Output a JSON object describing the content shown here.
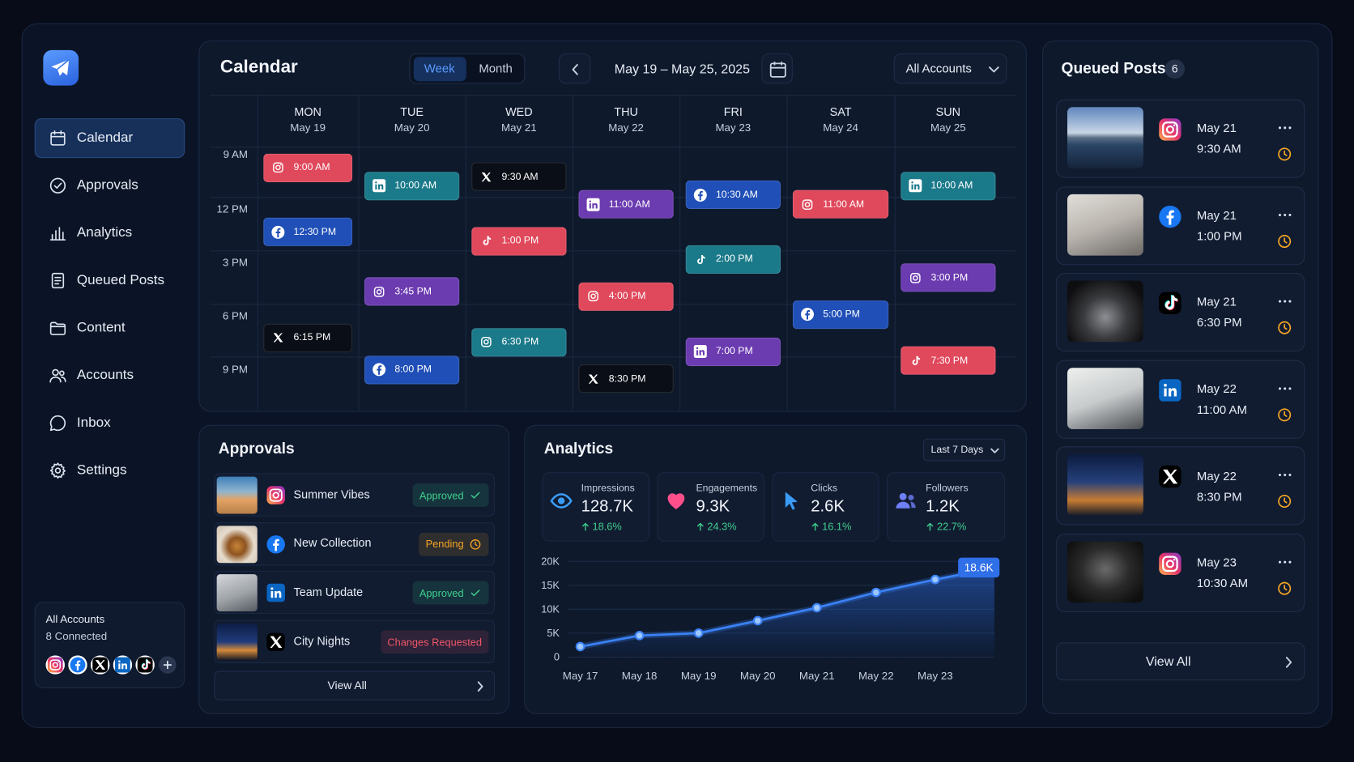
{
  "sidebar": {
    "nav": [
      "Calendar",
      "Approvals",
      "Analytics",
      "Queued Posts",
      "Content",
      "Accounts",
      "Inbox",
      "Settings"
    ],
    "accounts_summary": {
      "title": "All Accounts",
      "subtitle": "8 Connected",
      "platforms": [
        "instagram",
        "facebook",
        "x",
        "linkedin",
        "tiktok"
      ]
    }
  },
  "calendar": {
    "title": "Calendar",
    "views": [
      "Week",
      "Month"
    ],
    "range": "May 19 – May 25, 2025",
    "account_filter": "All Accounts",
    "times": [
      "9 AM",
      "12 PM",
      "3 PM",
      "6 PM",
      "9 PM"
    ],
    "days": [
      {
        "name": "MON",
        "date": "May 19",
        "events": [
          {
            "time": "9:00 AM",
            "platform": "instagram",
            "color": "#e0485b"
          },
          {
            "time": "12:30 PM",
            "platform": "facebook",
            "color": "#1f4fb7"
          },
          {
            "time": "6:15 PM",
            "platform": "x",
            "color": "#0a0e16"
          }
        ]
      },
      {
        "name": "TUE",
        "date": "May 20",
        "events": [
          {
            "time": "10:00 AM",
            "platform": "linkedin",
            "color": "#1b7a8a"
          },
          {
            "time": "3:45 PM",
            "platform": "instagram",
            "color": "#6b3bb0"
          },
          {
            "time": "8:00 PM",
            "platform": "facebook",
            "color": "#1f4fb7"
          }
        ]
      },
      {
        "name": "WED",
        "date": "May 21",
        "events": [
          {
            "time": "9:30 AM",
            "platform": "x",
            "color": "#0a0e16"
          },
          {
            "time": "1:00 PM",
            "platform": "tiktok",
            "color": "#e0485b"
          },
          {
            "time": "6:30 PM",
            "platform": "instagram",
            "color": "#1b7a8a"
          }
        ]
      },
      {
        "name": "THU",
        "date": "May 22",
        "events": [
          {
            "time": "11:00 AM",
            "platform": "linkedin",
            "color": "#6b3bb0"
          },
          {
            "time": "4:00 PM",
            "platform": "instagram",
            "color": "#e0485b"
          },
          {
            "time": "8:30 PM",
            "platform": "x",
            "color": "#0a0e16"
          }
        ]
      },
      {
        "name": "FRI",
        "date": "May 23",
        "events": [
          {
            "time": "10:30 AM",
            "platform": "facebook",
            "color": "#1f4fb7"
          },
          {
            "time": "2:00 PM",
            "platform": "tiktok",
            "color": "#1b7a8a"
          },
          {
            "time": "7:00 PM",
            "platform": "linkedin",
            "color": "#6b3bb0"
          }
        ]
      },
      {
        "name": "SAT",
        "date": "May 24",
        "events": [
          {
            "time": "11:00 AM",
            "platform": "instagram",
            "color": "#e0485b"
          },
          {
            "time": "5:00 PM",
            "platform": "facebook",
            "color": "#1f4fb7"
          }
        ]
      },
      {
        "name": "SUN",
        "date": "May 25",
        "events": [
          {
            "time": "10:00 AM",
            "platform": "linkedin",
            "color": "#1b7a8a"
          },
          {
            "time": "3:00 PM",
            "platform": "instagram",
            "color": "#6b3bb0"
          },
          {
            "time": "7:30 PM",
            "platform": "tiktok",
            "color": "#e0485b"
          }
        ]
      }
    ]
  },
  "queued_posts": {
    "title": "Queued Posts",
    "count": 6,
    "posts": [
      {
        "platform": "instagram",
        "date": "May 21",
        "time": "9:30 AM"
      },
      {
        "platform": "facebook",
        "date": "May 21",
        "time": "1:00 PM"
      },
      {
        "platform": "tiktok",
        "date": "May 21",
        "time": "6:30 PM"
      },
      {
        "platform": "linkedin",
        "date": "May 22",
        "time": "11:00 AM"
      },
      {
        "platform": "x",
        "date": "May 22",
        "time": "8:30 PM"
      },
      {
        "platform": "instagram",
        "date": "May 23",
        "time": "10:30 AM"
      }
    ],
    "view_all": "View All"
  },
  "approvals": {
    "title": "Approvals",
    "items": [
      {
        "title": "Summer Vibes",
        "platform": "instagram",
        "status": {
          "label": "Approved",
          "color": "#3ecf8e",
          "icon": "check"
        }
      },
      {
        "title": "New Collection",
        "platform": "facebook",
        "status": {
          "label": "Pending",
          "color": "#f5a524",
          "icon": "clock"
        }
      },
      {
        "title": "Team Update",
        "platform": "linkedin",
        "status": {
          "label": "Approved",
          "color": "#3ecf8e",
          "icon": "check"
        }
      },
      {
        "title": "City Nights",
        "platform": "x",
        "status": {
          "label": "Changes Requested",
          "color": "#f0566a"
        }
      }
    ],
    "view_all": "View All"
  },
  "analytics": {
    "title": "Analytics",
    "range": "Last 7 Days",
    "stats": [
      {
        "label": "Impressions",
        "value": "128.7K",
        "change": "18.6%",
        "icon": "eye",
        "color": "#3b9cf6"
      },
      {
        "label": "Engagements",
        "value": "9.3K",
        "change": "24.3%",
        "icon": "heart",
        "color": "#ff4f8b"
      },
      {
        "label": "Clicks",
        "value": "2.6K",
        "change": "16.1%",
        "icon": "cursor",
        "color": "#3b9cf6"
      },
      {
        "label": "Followers",
        "value": "1.2K",
        "change": "22.7%",
        "icon": "users",
        "color": "#6f7ff7"
      }
    ],
    "chart_data": {
      "type": "line",
      "categories": [
        "May 17",
        "May 18",
        "May 19",
        "May 20",
        "May 21",
        "May 22",
        "May 23",
        null
      ],
      "values": [
        2200,
        4500,
        5000,
        7600,
        10300,
        13500,
        16200,
        18600
      ],
      "value_labels": [
        null,
        null,
        null,
        null,
        null,
        null,
        null,
        "18.6K"
      ],
      "color": "#3b82f6",
      "ylim": [
        0,
        20000
      ],
      "yticks": [
        0,
        {
          "value": 5000,
          "label": "5K"
        },
        {
          "value": 10000,
          "label": "10K"
        },
        {
          "value": 15000,
          "label": "15K"
        },
        {
          "value": 20000,
          "label": "20K"
        }
      ],
      "grid": true
    }
  }
}
